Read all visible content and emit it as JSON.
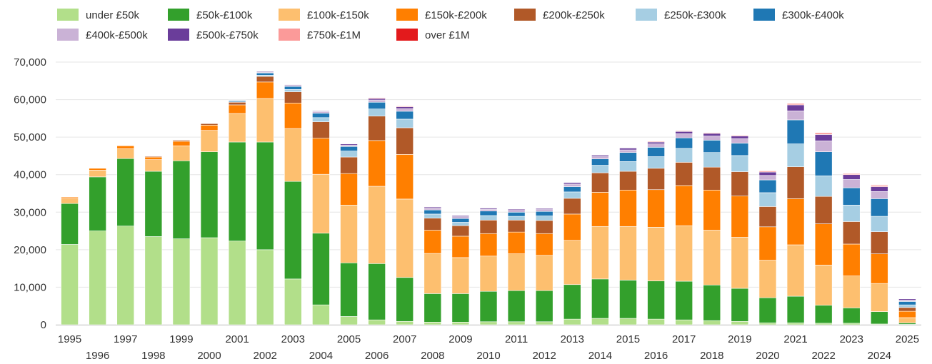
{
  "chart_data": {
    "type": "bar",
    "stacked": true,
    "title": "",
    "xlabel": "",
    "ylabel": "",
    "ylim": [
      0,
      70000
    ],
    "yticks": [
      0,
      10000,
      20000,
      30000,
      40000,
      50000,
      60000,
      70000
    ],
    "ytick_labels": [
      "0",
      "10,000",
      "20,000",
      "30,000",
      "40,000",
      "50,000",
      "60,000",
      "70,000"
    ],
    "grid": true,
    "legend_position": "top",
    "categories": [
      "1995",
      "1996",
      "1997",
      "1998",
      "1999",
      "2000",
      "2001",
      "2002",
      "2003",
      "2004",
      "2005",
      "2006",
      "2007",
      "2008",
      "2009",
      "2010",
      "2011",
      "2012",
      "2013",
      "2014",
      "2015",
      "2016",
      "2017",
      "2018",
      "2019",
      "2020",
      "2021",
      "2022",
      "2023",
      "2024",
      "2025"
    ],
    "series": [
      {
        "name": "under £50k",
        "color": "#b2df8a",
        "values": [
          21400,
          25000,
          26300,
          23500,
          22900,
          23200,
          22300,
          20000,
          12200,
          5300,
          2200,
          1300,
          900,
          700,
          700,
          800,
          800,
          800,
          1500,
          1700,
          1700,
          1500,
          1300,
          1100,
          900,
          500,
          500,
          400,
          400,
          200,
          100
        ]
      },
      {
        "name": "£50k-£100k",
        "color": "#33a02c",
        "values": [
          10900,
          14400,
          18000,
          17400,
          20800,
          22900,
          26400,
          28700,
          26000,
          19100,
          14300,
          15000,
          11700,
          7600,
          7600,
          8100,
          8300,
          8300,
          9200,
          10500,
          10200,
          10200,
          10300,
          9500,
          8800,
          6700,
          7100,
          4800,
          4100,
          3300,
          400
        ]
      },
      {
        "name": "£100k-£150k",
        "color": "#fdbf6f",
        "values": [
          1300,
          1800,
          2600,
          3100,
          4000,
          5700,
          7600,
          11600,
          14100,
          15700,
          15400,
          20600,
          20900,
          10700,
          9600,
          9400,
          9800,
          9400,
          11800,
          14000,
          14300,
          14300,
          14800,
          14600,
          13600,
          10000,
          13700,
          10700,
          8500,
          7500,
          1400
        ]
      },
      {
        "name": "£150k-£200k",
        "color": "#ff7f00",
        "values": [
          400,
          500,
          800,
          700,
          1200,
          1400,
          2300,
          4400,
          6800,
          9600,
          8400,
          12200,
          11900,
          6200,
          5700,
          6000,
          5800,
          5800,
          7000,
          9100,
          9700,
          10000,
          10700,
          10700,
          11000,
          8900,
          12300,
          11000,
          8500,
          7900,
          1700
        ]
      },
      {
        "name": "£200k-£250k",
        "color": "#b15928",
        "values": [
          100,
          100,
          100,
          200,
          300,
          400,
          700,
          1500,
          3000,
          4400,
          4400,
          6500,
          7100,
          3200,
          2800,
          3600,
          3200,
          3500,
          4200,
          5200,
          5000,
          5700,
          6200,
          6100,
          6500,
          5400,
          8500,
          7300,
          6000,
          5900,
          1000
        ]
      },
      {
        "name": "£250k-£300k",
        "color": "#a6cee3",
        "values": [
          0,
          0,
          0,
          0,
          0,
          0,
          100,
          300,
          600,
          1100,
          1600,
          1900,
          2300,
          1100,
          900,
          1200,
          1000,
          1200,
          1700,
          2000,
          2600,
          3100,
          3700,
          3900,
          4300,
          3700,
          6100,
          5500,
          4400,
          4100,
          700
        ]
      },
      {
        "name": "£300k-£400k",
        "color": "#1f78b4",
        "values": [
          0,
          0,
          0,
          0,
          100,
          100,
          300,
          600,
          800,
          1200,
          1200,
          1800,
          2100,
          1100,
          1000,
          1200,
          1100,
          1200,
          1400,
          1700,
          2400,
          2500,
          2800,
          3300,
          3300,
          3400,
          6400,
          6400,
          4600,
          4700,
          900
        ]
      },
      {
        "name": "£400k-£500k",
        "color": "#cab2d6",
        "values": [
          0,
          0,
          0,
          0,
          0,
          0,
          100,
          200,
          300,
          400,
          400,
          600,
          700,
          500,
          500,
          500,
          500,
          500,
          700,
          600,
          700,
          900,
          1100,
          1100,
          1200,
          1200,
          2400,
          2900,
          2200,
          1900,
          400
        ]
      },
      {
        "name": "£500k-£750k",
        "color": "#6a3d9a",
        "values": [
          0,
          0,
          0,
          0,
          0,
          0,
          100,
          200,
          200,
          200,
          300,
          400,
          500,
          300,
          300,
          300,
          300,
          300,
          400,
          400,
          500,
          500,
          600,
          700,
          700,
          900,
          1600,
          1700,
          1300,
          1300,
          300
        ]
      },
      {
        "name": "£750k-£1M",
        "color": "#fb9a99",
        "values": [
          0,
          0,
          0,
          0,
          0,
          0,
          0,
          100,
          100,
          100,
          100,
          200,
          200,
          100,
          100,
          100,
          100,
          100,
          100,
          100,
          100,
          200,
          200,
          200,
          200,
          300,
          400,
          500,
          300,
          400,
          100
        ]
      },
      {
        "name": "over £1M",
        "color": "#e31a1c",
        "values": [
          0,
          0,
          0,
          0,
          0,
          0,
          0,
          0,
          0,
          0,
          0,
          0,
          0,
          0,
          0,
          0,
          0,
          0,
          0,
          0,
          0,
          0,
          0,
          0,
          0,
          0,
          100,
          100,
          100,
          100,
          0
        ]
      }
    ]
  }
}
